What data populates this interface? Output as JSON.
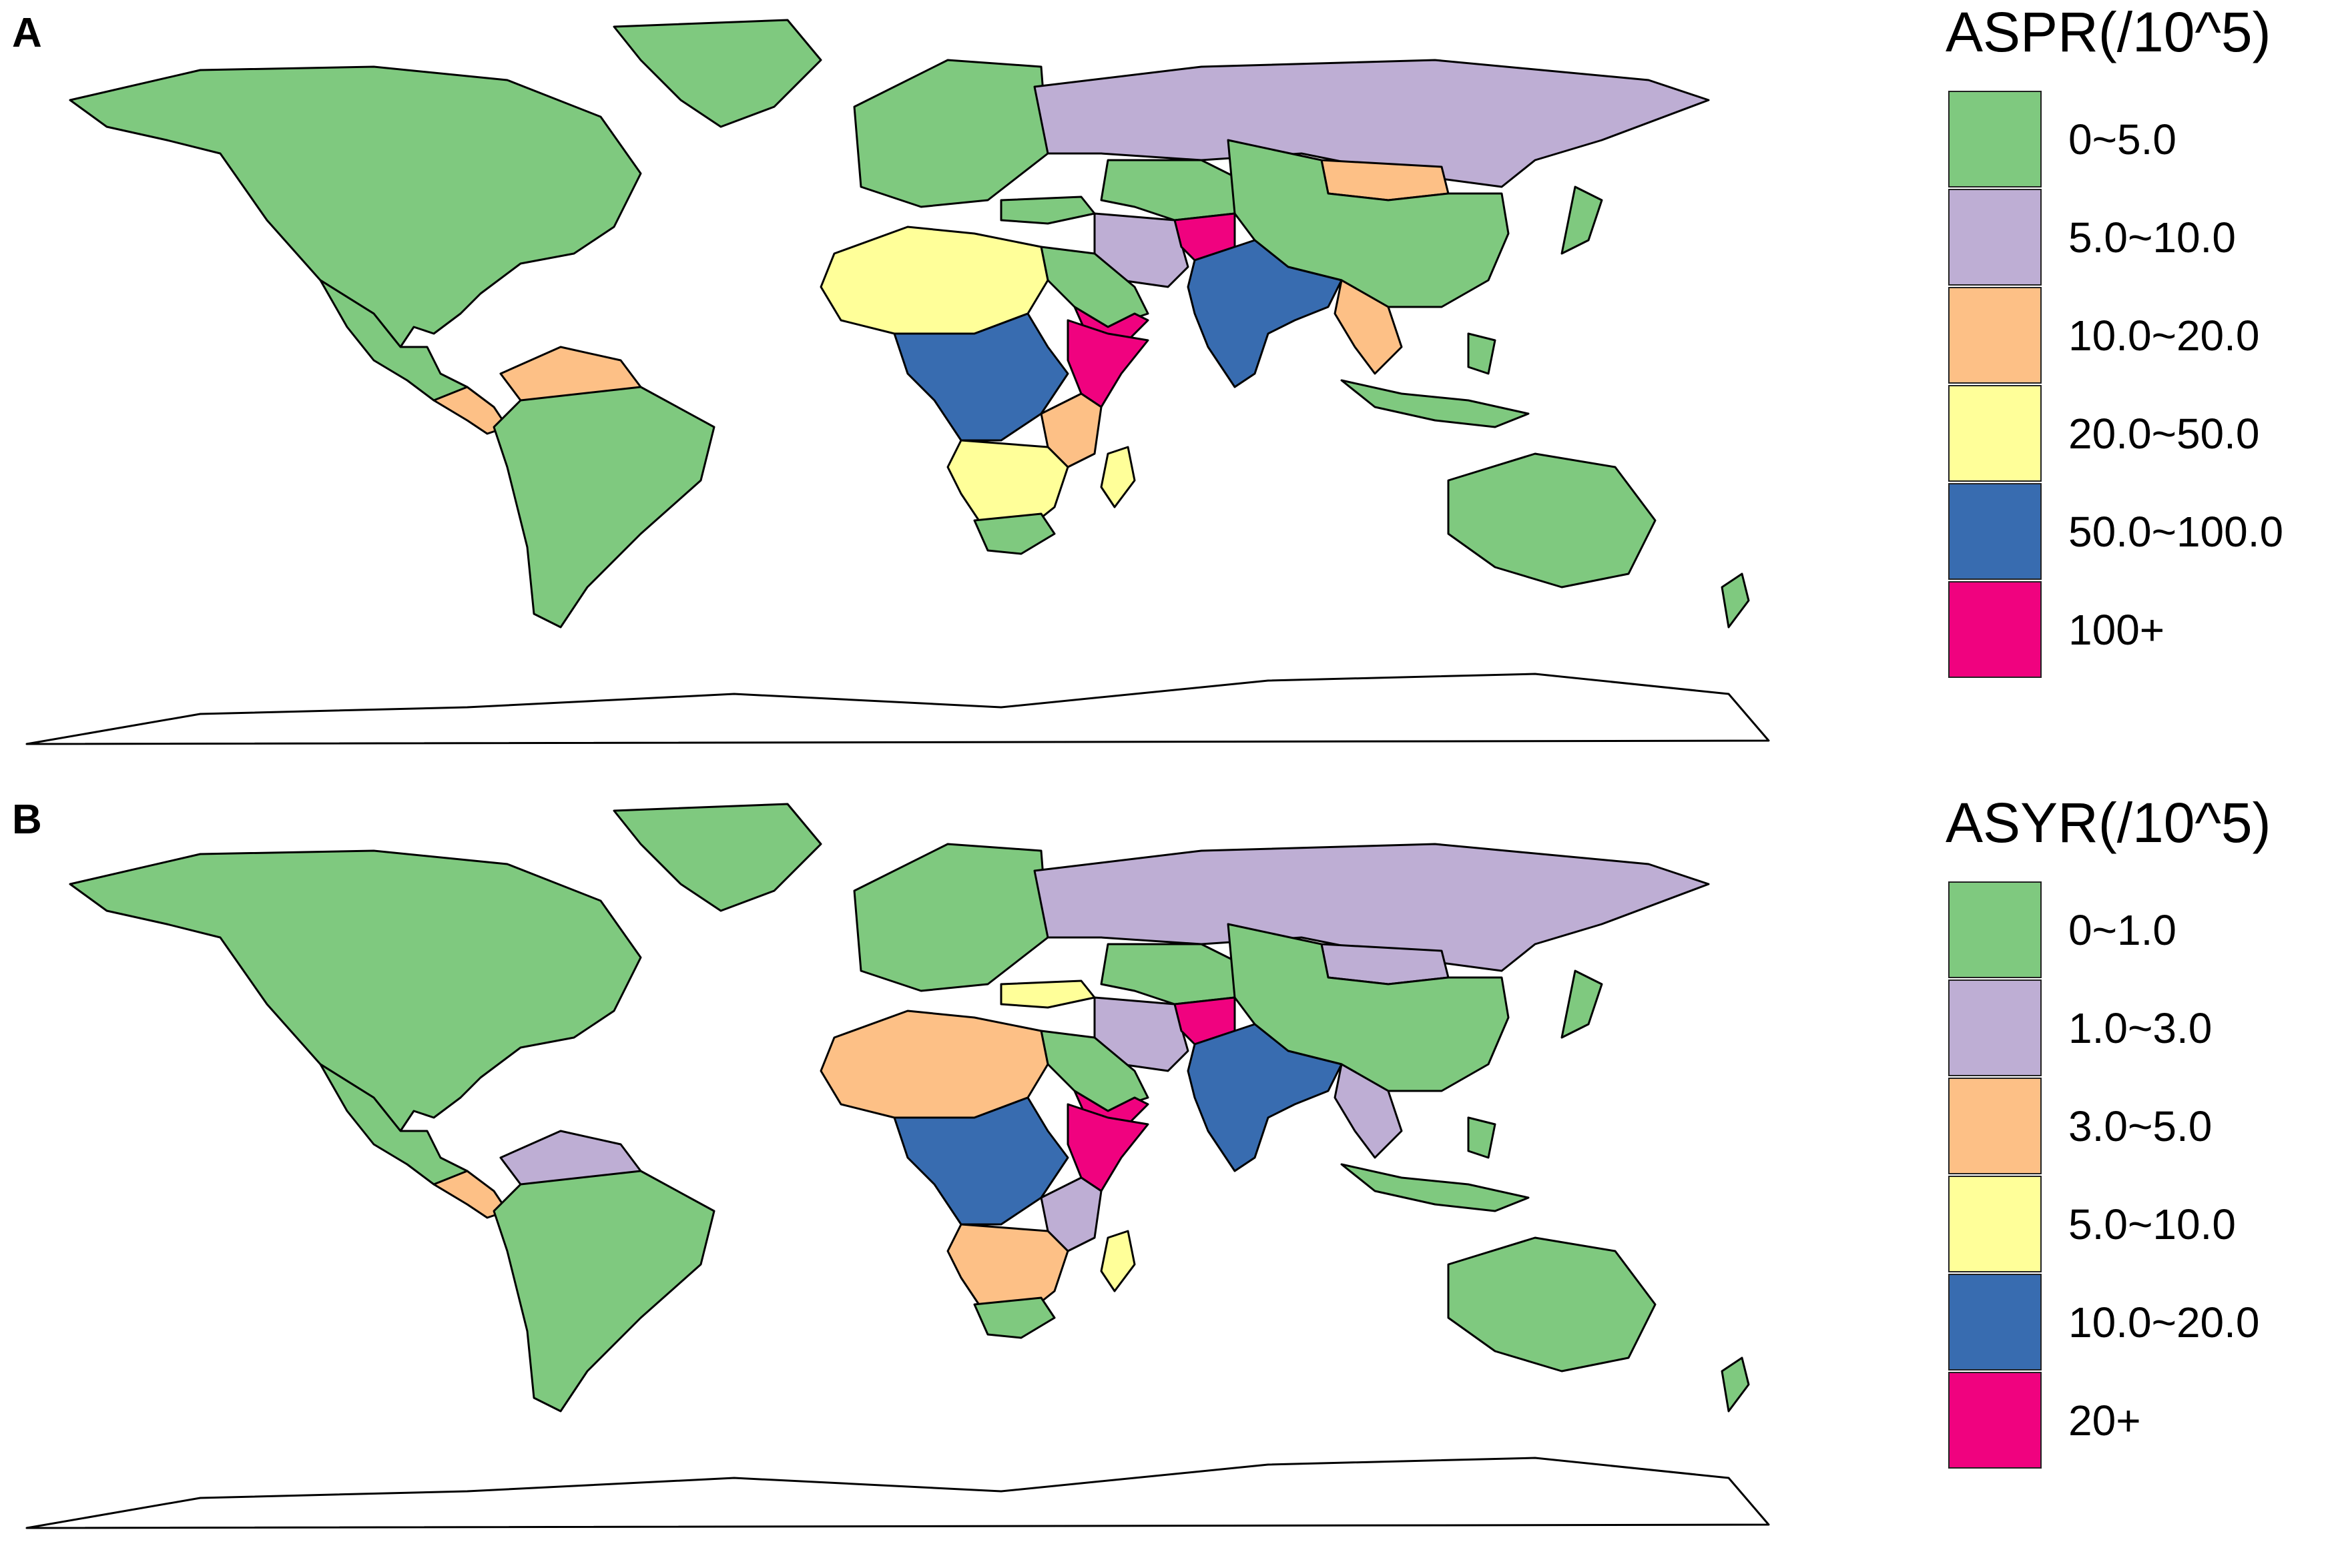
{
  "panels": [
    {
      "letter": "A",
      "legend": {
        "title": "ASPR(/10^5)",
        "items": [
          {
            "label": "0~5.0",
            "color": "#7fc97f"
          },
          {
            "label": "5.0~10.0",
            "color": "#beaed4"
          },
          {
            "label": "10.0~20.0",
            "color": "#fdc086"
          },
          {
            "label": "20.0~50.0",
            "color": "#ffff99"
          },
          {
            "label": "50.0~100.0",
            "color": "#386cb0"
          },
          {
            "label": "100+",
            "color": "#f0027f"
          }
        ]
      }
    },
    {
      "letter": "B",
      "legend": {
        "title": "ASYR(/10^5)",
        "items": [
          {
            "label": "0~1.0",
            "color": "#7fc97f"
          },
          {
            "label": "1.0~3.0",
            "color": "#beaed4"
          },
          {
            "label": "3.0~5.0",
            "color": "#fdc086"
          },
          {
            "label": "5.0~10.0",
            "color": "#ffff99"
          },
          {
            "label": "10.0~20.0",
            "color": "#386cb0"
          },
          {
            "label": "20+",
            "color": "#f0027f"
          }
        ]
      }
    }
  ]
}
